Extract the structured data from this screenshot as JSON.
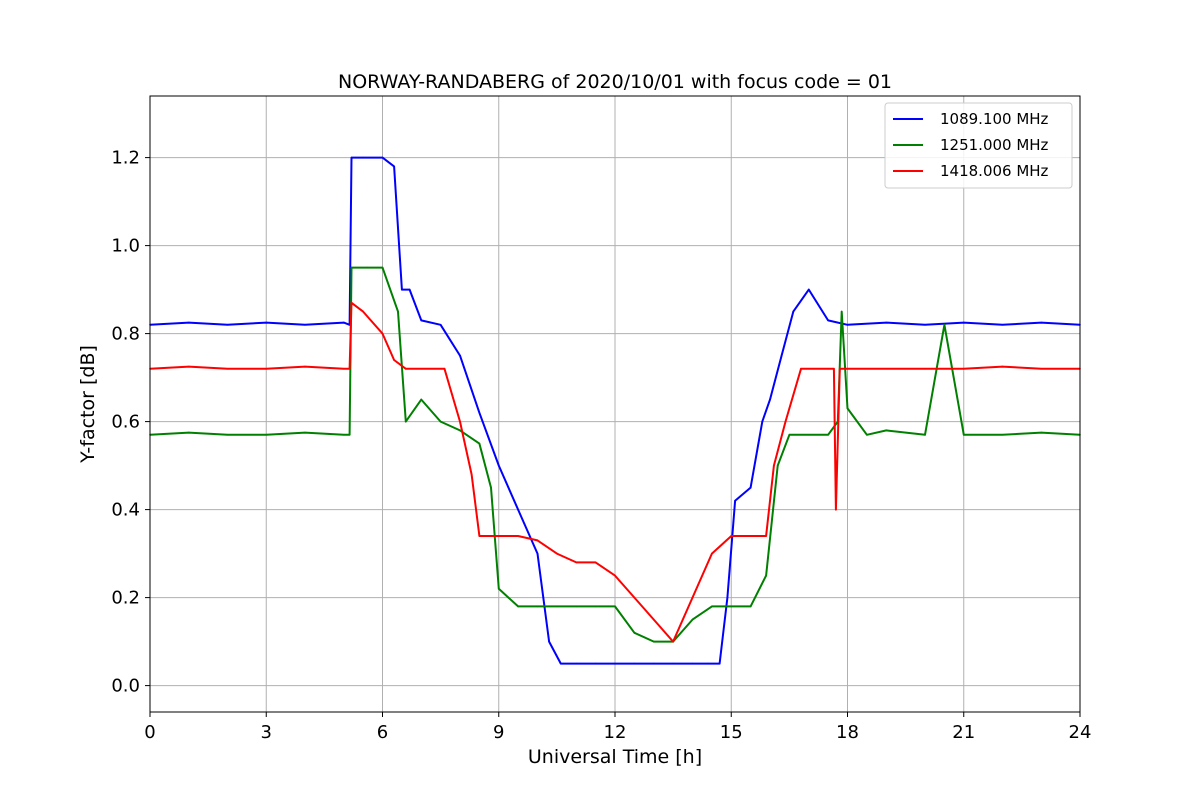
{
  "chart_data": {
    "type": "line",
    "title": "NORWAY-RANDABERG of 2020/10/01 with focus code = 01",
    "xlabel": "Universal Time [h]",
    "ylabel": "Y-factor [dB]",
    "xlim": [
      0,
      24
    ],
    "ylim": [
      -0.06,
      1.34
    ],
    "xticks": [
      "0",
      "3",
      "6",
      "9",
      "12",
      "15",
      "18",
      "21",
      "24"
    ],
    "yticks": [
      "0.0",
      "0.2",
      "0.4",
      "0.6",
      "0.8",
      "1.0",
      "1.2"
    ],
    "grid": true,
    "legend_position": "top-right",
    "series": [
      {
        "name": "1089.100 MHz",
        "color": "#0000ff",
        "x": [
          0,
          1,
          2,
          3,
          4,
          5,
          5.15,
          5.2,
          5.5,
          6,
          6.3,
          6.5,
          6.7,
          7,
          7.5,
          8,
          8.5,
          9,
          9.5,
          10,
          10.3,
          10.6,
          11,
          11.5,
          12,
          12.5,
          13,
          13.5,
          14,
          14.4,
          14.7,
          14.9,
          15.1,
          15.5,
          15.8,
          16,
          16.3,
          16.6,
          17,
          17.5,
          18,
          19,
          20,
          21,
          22,
          23,
          24
        ],
        "y": [
          0.82,
          0.825,
          0.82,
          0.825,
          0.82,
          0.825,
          0.82,
          1.2,
          1.2,
          1.2,
          1.18,
          0.9,
          0.9,
          0.83,
          0.82,
          0.75,
          0.62,
          0.5,
          0.4,
          0.3,
          0.1,
          0.05,
          0.05,
          0.05,
          0.05,
          0.05,
          0.05,
          0.05,
          0.05,
          0.05,
          0.05,
          0.2,
          0.42,
          0.45,
          0.6,
          0.65,
          0.75,
          0.85,
          0.9,
          0.83,
          0.82,
          0.825,
          0.82,
          0.825,
          0.82,
          0.825,
          0.82
        ]
      },
      {
        "name": "1251.000 MHz",
        "color": "#008000",
        "x": [
          0,
          1,
          2,
          3,
          4,
          5,
          5.15,
          5.2,
          5.6,
          6,
          6.4,
          6.6,
          7,
          7.5,
          8,
          8.5,
          8.8,
          9,
          9.5,
          10,
          10.5,
          11,
          11.5,
          12,
          12.5,
          13,
          13.5,
          14,
          14.5,
          15,
          15.5,
          15.9,
          16.2,
          16.5,
          17,
          17.5,
          17.75,
          17.85,
          18,
          18.5,
          19,
          20,
          20.5,
          21,
          22,
          23,
          24
        ],
        "y": [
          0.57,
          0.575,
          0.57,
          0.57,
          0.575,
          0.57,
          0.57,
          0.95,
          0.95,
          0.95,
          0.85,
          0.6,
          0.65,
          0.6,
          0.58,
          0.55,
          0.45,
          0.22,
          0.18,
          0.18,
          0.18,
          0.18,
          0.18,
          0.18,
          0.12,
          0.1,
          0.1,
          0.15,
          0.18,
          0.18,
          0.18,
          0.25,
          0.5,
          0.57,
          0.57,
          0.57,
          0.6,
          0.85,
          0.63,
          0.57,
          0.58,
          0.57,
          0.82,
          0.57,
          0.57,
          0.575,
          0.57
        ]
      },
      {
        "name": "1418.006 MHz",
        "color": "#ff0000",
        "x": [
          0,
          1,
          2,
          3,
          4,
          5,
          5.15,
          5.2,
          5.5,
          6,
          6.3,
          6.6,
          7,
          7.6,
          8,
          8.3,
          8.5,
          9,
          9.5,
          10,
          10.5,
          11,
          11.5,
          12,
          12.5,
          13,
          13.5,
          14,
          14.5,
          15,
          15.5,
          15.9,
          16.1,
          16.4,
          16.8,
          17,
          17.5,
          17.65,
          17.7,
          17.8,
          18,
          19,
          20,
          21,
          22,
          23,
          24
        ],
        "y": [
          0.72,
          0.725,
          0.72,
          0.72,
          0.725,
          0.72,
          0.72,
          0.87,
          0.85,
          0.8,
          0.74,
          0.72,
          0.72,
          0.72,
          0.6,
          0.48,
          0.34,
          0.34,
          0.34,
          0.33,
          0.3,
          0.28,
          0.28,
          0.25,
          0.2,
          0.15,
          0.1,
          0.2,
          0.3,
          0.34,
          0.34,
          0.34,
          0.5,
          0.6,
          0.72,
          0.72,
          0.72,
          0.72,
          0.4,
          0.72,
          0.72,
          0.72,
          0.72,
          0.72,
          0.725,
          0.72,
          0.72
        ]
      }
    ]
  }
}
